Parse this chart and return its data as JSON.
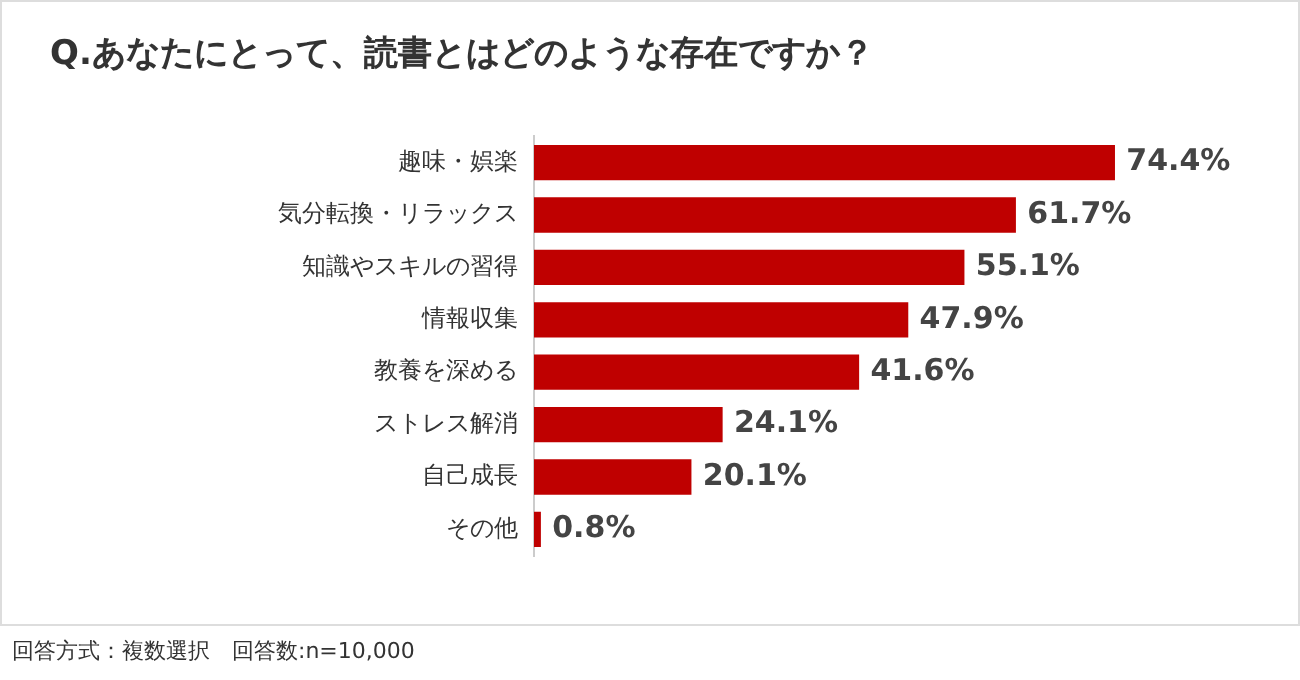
{
  "chart_data": {
    "type": "bar",
    "orientation": "horizontal",
    "title": "Q.あなたにとって、読書とはどのような存在ですか？",
    "categories": [
      "趣味・娯楽",
      "気分転換・リラックス",
      "知識やスキルの習得",
      "情報収集",
      "教養を深める",
      "ストレス解消",
      "自己成長",
      "その他"
    ],
    "values": [
      74.4,
      61.7,
      55.1,
      47.9,
      41.6,
      24.1,
      20.1,
      0.8
    ],
    "value_labels": [
      "74.4%",
      "61.7%",
      "55.1%",
      "47.9%",
      "41.6%",
      "24.1%",
      "20.1%",
      "0.8%"
    ],
    "color": "#bf0000",
    "legend": false,
    "tick_labels": "y",
    "annotations": [
      "回答方式：複数選択　回答数:n=10,000"
    ]
  }
}
